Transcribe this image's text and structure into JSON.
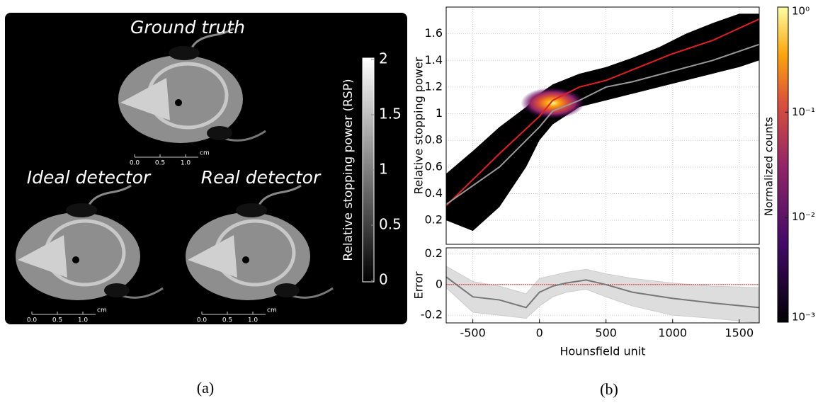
{
  "panel_a": {
    "colorbar": {
      "label": "Relative stopping power (RSP)",
      "lim": [
        0,
        2
      ],
      "ticks": [
        0,
        0.5,
        1,
        1.5,
        2
      ]
    },
    "images": [
      {
        "title": "Ground truth",
        "scale": [
          "0.0",
          "0.5",
          "1.0"
        ],
        "unit": "cm"
      },
      {
        "title": "Ideal detector",
        "scale": [
          "0.0",
          "0.5",
          "1.0"
        ],
        "unit": "cm"
      },
      {
        "title": "Real detector",
        "scale": [
          "0.0",
          "0.5",
          "1.0"
        ],
        "unit": "cm"
      }
    ]
  },
  "chart_data": [
    {
      "type": "density-scatter",
      "ylabel": "Relative stopping power",
      "ylim": [
        0.02,
        1.8
      ],
      "yticks": [
        0.2,
        0.4,
        0.6,
        0.8,
        1,
        1.2,
        1.4,
        1.6
      ],
      "grid": true,
      "cloud": {
        "x": [
          -700,
          -500,
          -300,
          -100,
          0,
          100,
          300,
          500,
          700,
          900,
          1100,
          1300,
          1500,
          1650
        ],
        "upper": [
          0.55,
          0.72,
          0.9,
          1.05,
          1.15,
          1.22,
          1.3,
          1.35,
          1.42,
          1.5,
          1.6,
          1.68,
          1.75,
          1.75
        ],
        "lower": [
          0.2,
          0.12,
          0.3,
          0.6,
          0.8,
          0.92,
          1.05,
          1.1,
          1.15,
          1.2,
          1.25,
          1.3,
          1.35,
          1.4
        ]
      },
      "peak": {
        "x": 100,
        "y": 1.08
      },
      "series": [
        {
          "color": "#e02020",
          "x": [
            -700,
            -300,
            0,
            100,
            300,
            500,
            700,
            1000,
            1300,
            1650
          ],
          "values": [
            0.31,
            0.7,
            0.98,
            1.1,
            1.2,
            1.25,
            1.33,
            1.45,
            1.55,
            1.71
          ]
        },
        {
          "color": "#9a9a9a",
          "x": [
            -700,
            -300,
            0,
            100,
            300,
            500,
            700,
            1000,
            1300,
            1650
          ],
          "values": [
            0.32,
            0.6,
            0.9,
            1.02,
            1.1,
            1.2,
            1.24,
            1.32,
            1.4,
            1.52
          ]
        }
      ],
      "colorbar": {
        "label": "Normalized counts",
        "log": true,
        "lim": [
          0.001,
          1
        ],
        "ticks": [
          {
            "value": 0.001,
            "label": "10⁻³"
          },
          {
            "value": 0.01,
            "label": "10⁻²"
          },
          {
            "value": 0.1,
            "label": "10⁻¹"
          },
          {
            "value": 1,
            "label": "10⁰"
          }
        ]
      }
    },
    {
      "type": "band-line",
      "ylabel": "Error",
      "xlabel": "Hounsfield unit",
      "xlim": [
        -700,
        1650
      ],
      "xticks": [
        -500,
        0,
        500,
        1000,
        1500
      ],
      "ylim": [
        -0.25,
        0.24
      ],
      "yticks": [
        -0.2,
        0,
        0.2
      ],
      "grid": true,
      "zero_line": 0,
      "x": [
        -700,
        -500,
        -300,
        -100,
        0,
        100,
        200,
        350,
        500,
        700,
        1000,
        1300,
        1650
      ],
      "values": [
        0.05,
        -0.08,
        -0.1,
        -0.15,
        -0.05,
        -0.01,
        0.01,
        0.03,
        0.0,
        -0.05,
        -0.09,
        -0.12,
        -0.15
      ],
      "upper": [
        0.12,
        0.02,
        -0.01,
        -0.06,
        0.04,
        0.06,
        0.08,
        0.1,
        0.07,
        0.04,
        0.01,
        -0.01,
        -0.02
      ],
      "lower": [
        -0.02,
        -0.18,
        -0.2,
        -0.22,
        -0.14,
        -0.08,
        -0.05,
        -0.03,
        -0.08,
        -0.14,
        -0.2,
        -0.22,
        -0.25
      ]
    }
  ],
  "captions": [
    "(a)",
    "(b)"
  ]
}
